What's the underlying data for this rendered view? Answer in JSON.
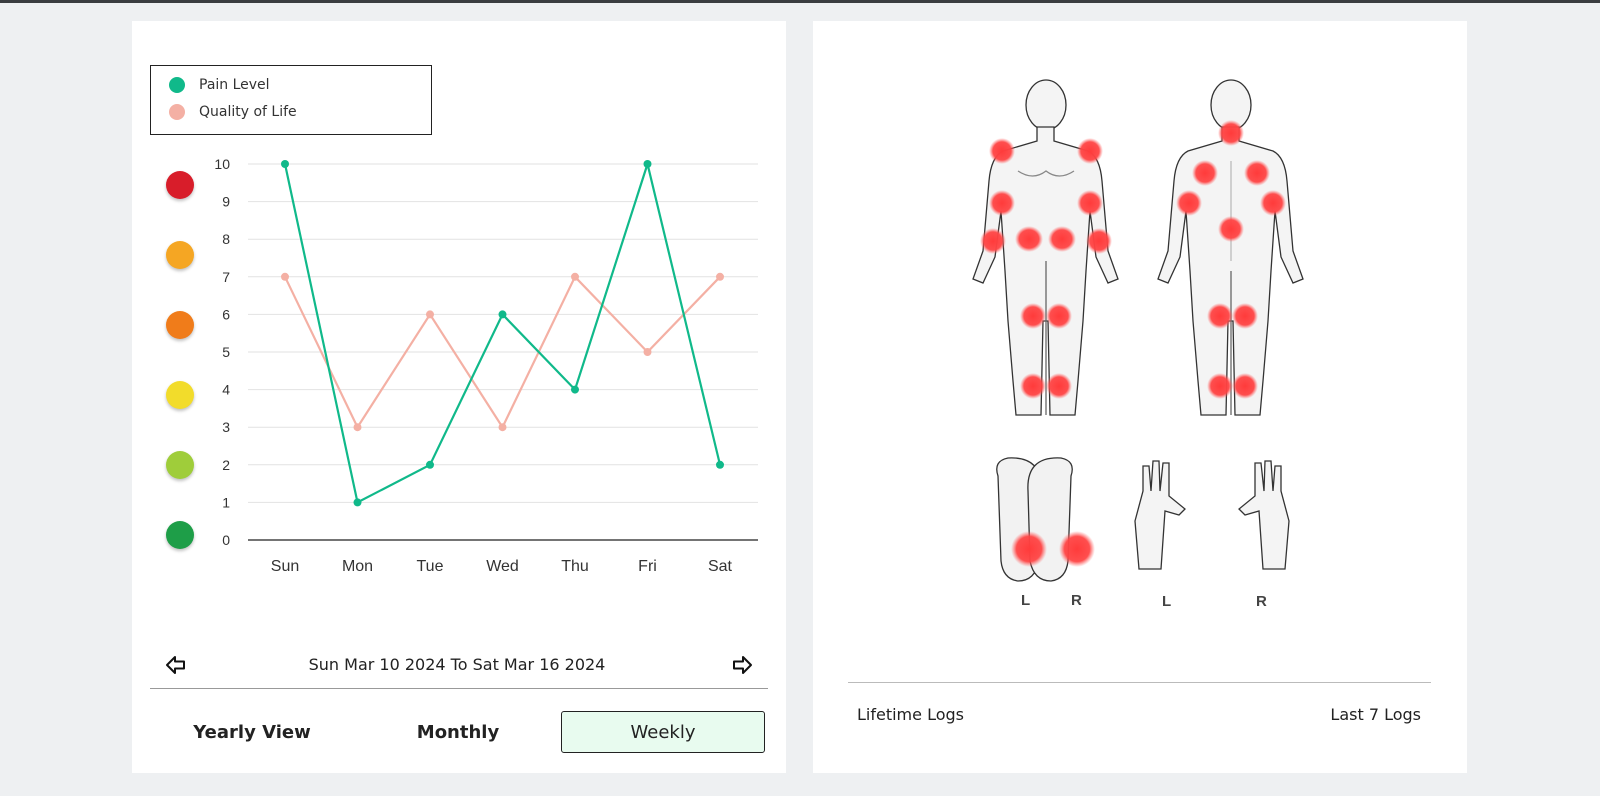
{
  "legend": {
    "pain_label": "Pain Level",
    "qol_label": "Quality of Life"
  },
  "colors": {
    "pain": "#10b98a",
    "qol": "#f4b0a4",
    "hotspot": "#ff3b3b"
  },
  "faces": [
    {
      "level": "worst",
      "color": "#d81d2a"
    },
    {
      "level": "very-bad",
      "color": "#f5a623"
    },
    {
      "level": "bad",
      "color": "#f07c1a"
    },
    {
      "level": "neutral",
      "color": "#f2dc2b"
    },
    {
      "level": "good",
      "color": "#9fcd3a"
    },
    {
      "level": "best",
      "color": "#1e9e48"
    }
  ],
  "chart_data": {
    "type": "line",
    "categories": [
      "Sun",
      "Mon",
      "Tue",
      "Wed",
      "Thu",
      "Fri",
      "Sat"
    ],
    "series": [
      {
        "name": "Pain Level",
        "values": [
          10,
          1,
          2,
          6,
          4,
          10,
          2
        ]
      },
      {
        "name": "Quality of Life",
        "values": [
          7,
          3,
          6,
          3,
          7,
          5,
          7
        ]
      }
    ],
    "yticks": [
      "0",
      "1",
      "2",
      "3",
      "4",
      "5",
      "6",
      "7",
      "8",
      "9",
      "10"
    ],
    "ylim": [
      0,
      10
    ],
    "grid": true,
    "legend_position": "top-left"
  },
  "date_range": "Sun Mar 10 2024 To Sat Mar 16 2024",
  "views": {
    "yearly": "Yearly View",
    "monthly": "Monthly",
    "weekly": "Weekly",
    "selected": "weekly"
  },
  "body_map": {
    "feet_left_label": "L",
    "feet_right_label": "R",
    "hands_left_label": "L",
    "hands_right_label": "R"
  },
  "footer": {
    "lifetime_logs": "Lifetime Logs",
    "last_logs": "Last 7 Logs"
  }
}
